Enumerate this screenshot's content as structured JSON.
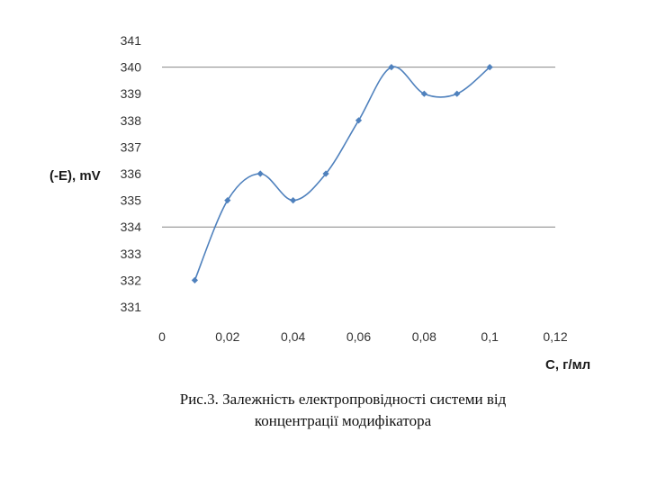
{
  "chart_data": {
    "type": "line",
    "x": [
      0.01,
      0.02,
      0.03,
      0.04,
      0.05,
      0.06,
      0.07,
      0.08,
      0.09,
      0.1
    ],
    "series": [
      {
        "values": [
          332,
          335,
          336,
          335,
          336,
          338,
          340,
          339,
          339,
          340
        ]
      }
    ],
    "xlabel": "С, г/мл",
    "ylabel": "(-E), mV",
    "xlim": [
      0,
      0.12
    ],
    "ylim": [
      331,
      341
    ],
    "x_ticks": [
      "0",
      "0,02",
      "0,04",
      "0,06",
      "0,08",
      "0,1",
      "0,12"
    ],
    "y_ticks": [
      "331",
      "332",
      "333",
      "334",
      "335",
      "336",
      "337",
      "338",
      "339",
      "340",
      "341"
    ],
    "gridlines_y": [
      334,
      340
    ],
    "smooth": true,
    "marker": "diamond",
    "line_color": "#4f81bd",
    "grid_color": "#868686",
    "legend": "none"
  },
  "caption": {
    "line1": "Рис.3.  Залежність електропровідності системи від",
    "line2": "концентрації модифікатора"
  }
}
